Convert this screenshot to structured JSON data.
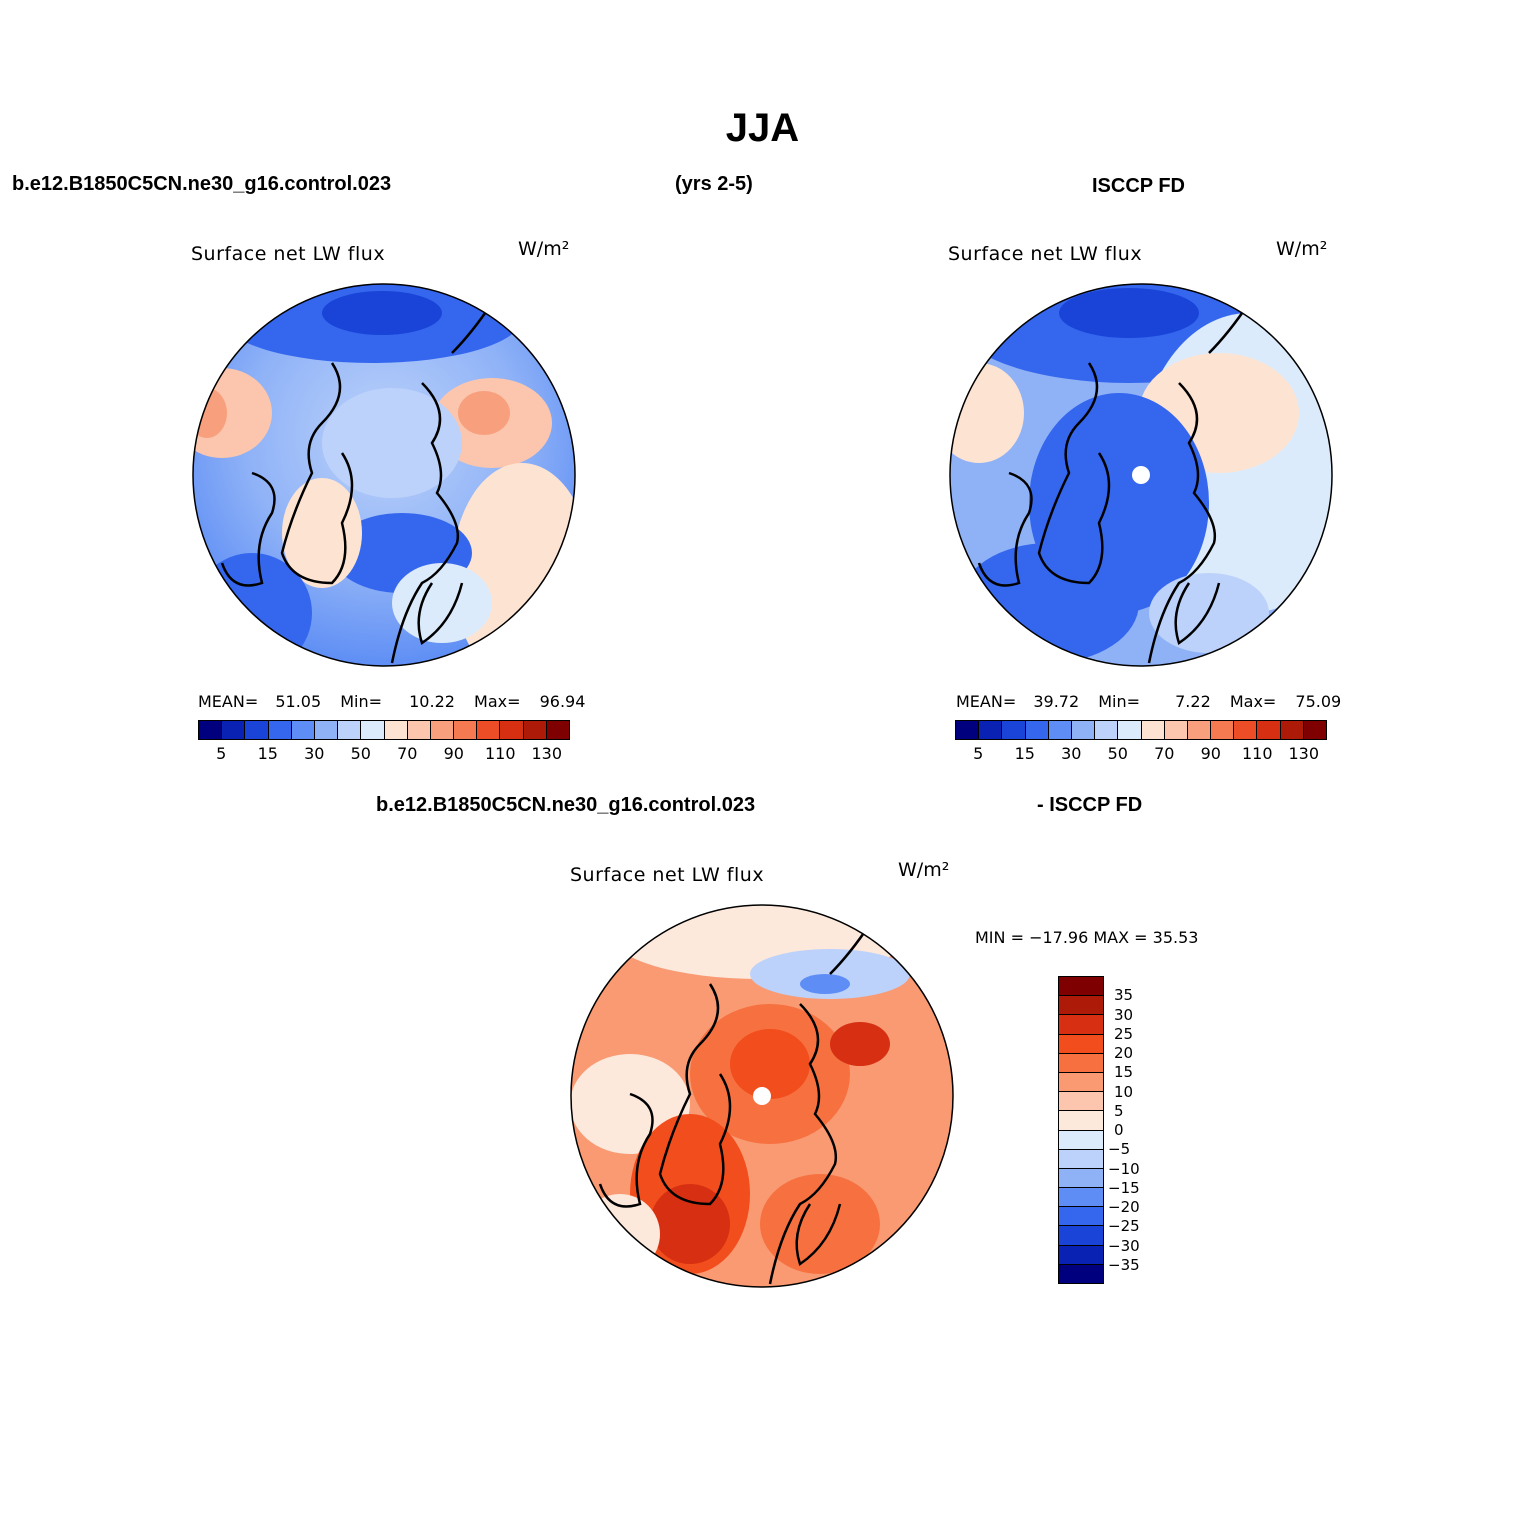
{
  "title": "JJA",
  "top_left_case": "b.e12.B1850C5CN.ne30_g16.control.023",
  "top_years": "(yrs 2-5)",
  "top_right_obs": "ISCCP FD",
  "bottom_case": "b.e12.B1850C5CN.ne30_g16.control.023",
  "bottom_obs": "- ISCCP FD",
  "panels": {
    "model": {
      "title": "Surface net LW flux",
      "units": "W/m²",
      "mean_label": "MEAN=",
      "mean": "51.05",
      "min_label": "Min=",
      "min": "10.22",
      "max_label": "Max=",
      "max": "96.94"
    },
    "obs": {
      "title": "Surface net LW flux",
      "units": "W/m²",
      "mean_label": "MEAN=",
      "mean": "39.72",
      "min_label": "Min=",
      "min": "7.22",
      "max_label": "Max=",
      "max": "75.09"
    },
    "diff": {
      "title": "Surface net LW flux",
      "units": "W/m²",
      "minmax": "MIN = −17.96 MAX =  35.53"
    }
  },
  "colorbar_abs": {
    "colors": [
      "#00007e",
      "#0a22b4",
      "#1a44d8",
      "#3567ee",
      "#5e8ef5",
      "#8fb2f7",
      "#bcd2fa",
      "#dcebfb",
      "#fde4d2",
      "#fbc6ad",
      "#f8a07e",
      "#f57a52",
      "#ec4d26",
      "#d62f12",
      "#ad1a08",
      "#7e0000"
    ],
    "labels": [
      "5",
      "15",
      "30",
      "50",
      "70",
      "90",
      "110",
      "130"
    ]
  },
  "colorbar_diff": {
    "colors": [
      "#7e0000",
      "#ad1a08",
      "#d62f12",
      "#f24d1c",
      "#f6713f",
      "#f99a72",
      "#fbc6ad",
      "#fde8dc",
      "#dcebfb",
      "#bcd2fa",
      "#8fb2f7",
      "#5e8ef5",
      "#3567ee",
      "#1a44d8",
      "#0a22b4",
      "#00007e"
    ],
    "labels": [
      "35",
      "30",
      "25",
      "20",
      "15",
      "10",
      "5",
      "0",
      "−5",
      "−10",
      "−15",
      "−20",
      "−25",
      "−30",
      "−35"
    ]
  }
}
